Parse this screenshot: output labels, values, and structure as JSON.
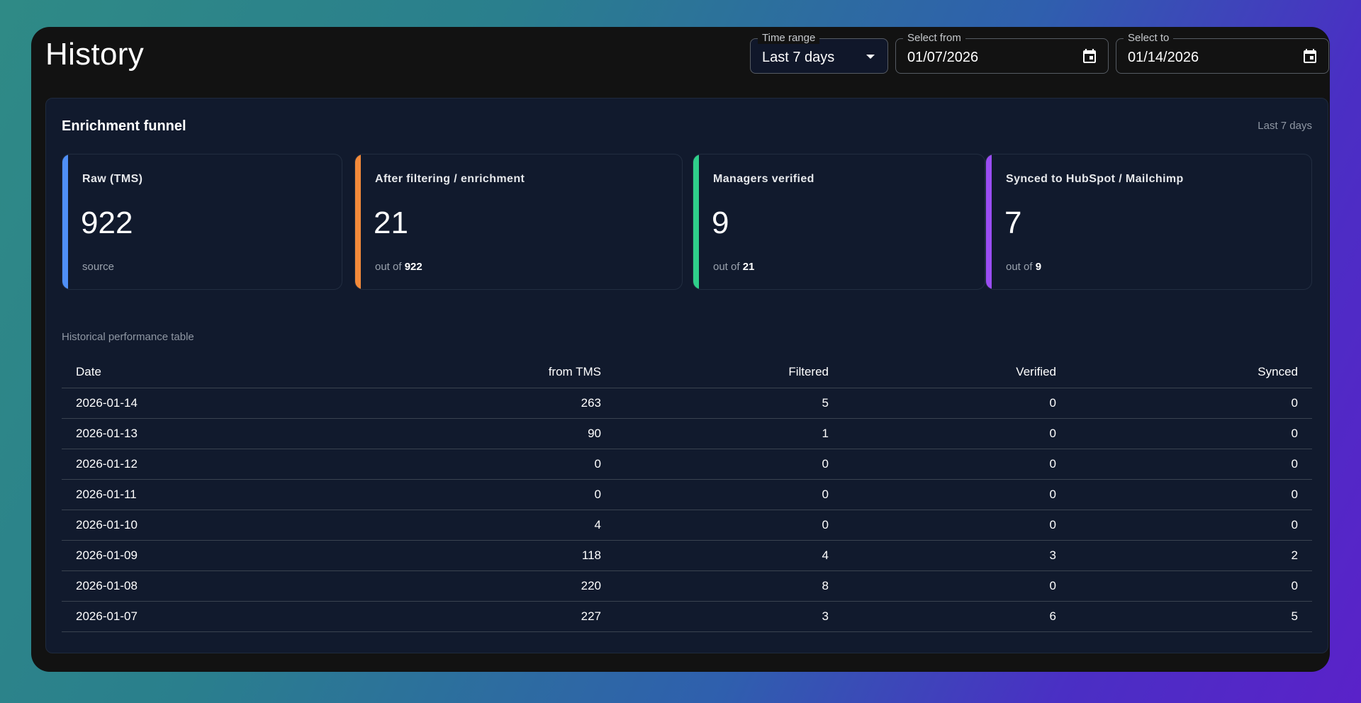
{
  "header": {
    "title": "History",
    "time_range": {
      "label": "Time range",
      "value": "Last 7 days"
    },
    "select_from": {
      "label": "Select from",
      "value": "01/07/2026"
    },
    "select_to": {
      "label": "Select to",
      "value": "01/14/2026"
    }
  },
  "funnel": {
    "title": "Enrichment funnel",
    "range_label": "Last 7 days",
    "cards": [
      {
        "title": "Raw (TMS)",
        "value": "922",
        "sub_text": "source",
        "sub_bold": "",
        "accent": "#4f8ff7"
      },
      {
        "title": "After filtering / enrichment",
        "value": "21",
        "sub_text": "out of ",
        "sub_bold": "922",
        "accent": "#f38a3a"
      },
      {
        "title": "Managers verified",
        "value": "9",
        "sub_text": "out of ",
        "sub_bold": "21",
        "accent": "#2fcf8a"
      },
      {
        "title": "Synced to HubSpot / Mailchimp",
        "value": "7",
        "sub_text": "out of ",
        "sub_bold": "9",
        "accent": "#9a4df2"
      }
    ]
  },
  "table": {
    "caption": "Historical performance table",
    "columns": [
      "Date",
      "from TMS",
      "Filtered",
      "Verified",
      "Synced"
    ],
    "rows": [
      [
        "2026-01-14",
        "263",
        "5",
        "0",
        "0"
      ],
      [
        "2026-01-13",
        "90",
        "1",
        "0",
        "0"
      ],
      [
        "2026-01-12",
        "0",
        "0",
        "0",
        "0"
      ],
      [
        "2026-01-11",
        "0",
        "0",
        "0",
        "0"
      ],
      [
        "2026-01-10",
        "4",
        "0",
        "0",
        "0"
      ],
      [
        "2026-01-09",
        "118",
        "4",
        "3",
        "2"
      ],
      [
        "2026-01-08",
        "220",
        "8",
        "0",
        "0"
      ],
      [
        "2026-01-07",
        "227",
        "3",
        "6",
        "5"
      ]
    ]
  },
  "icons": {
    "time_range_caret": "chevron-down-icon",
    "date_picker": "calendar-icon"
  }
}
